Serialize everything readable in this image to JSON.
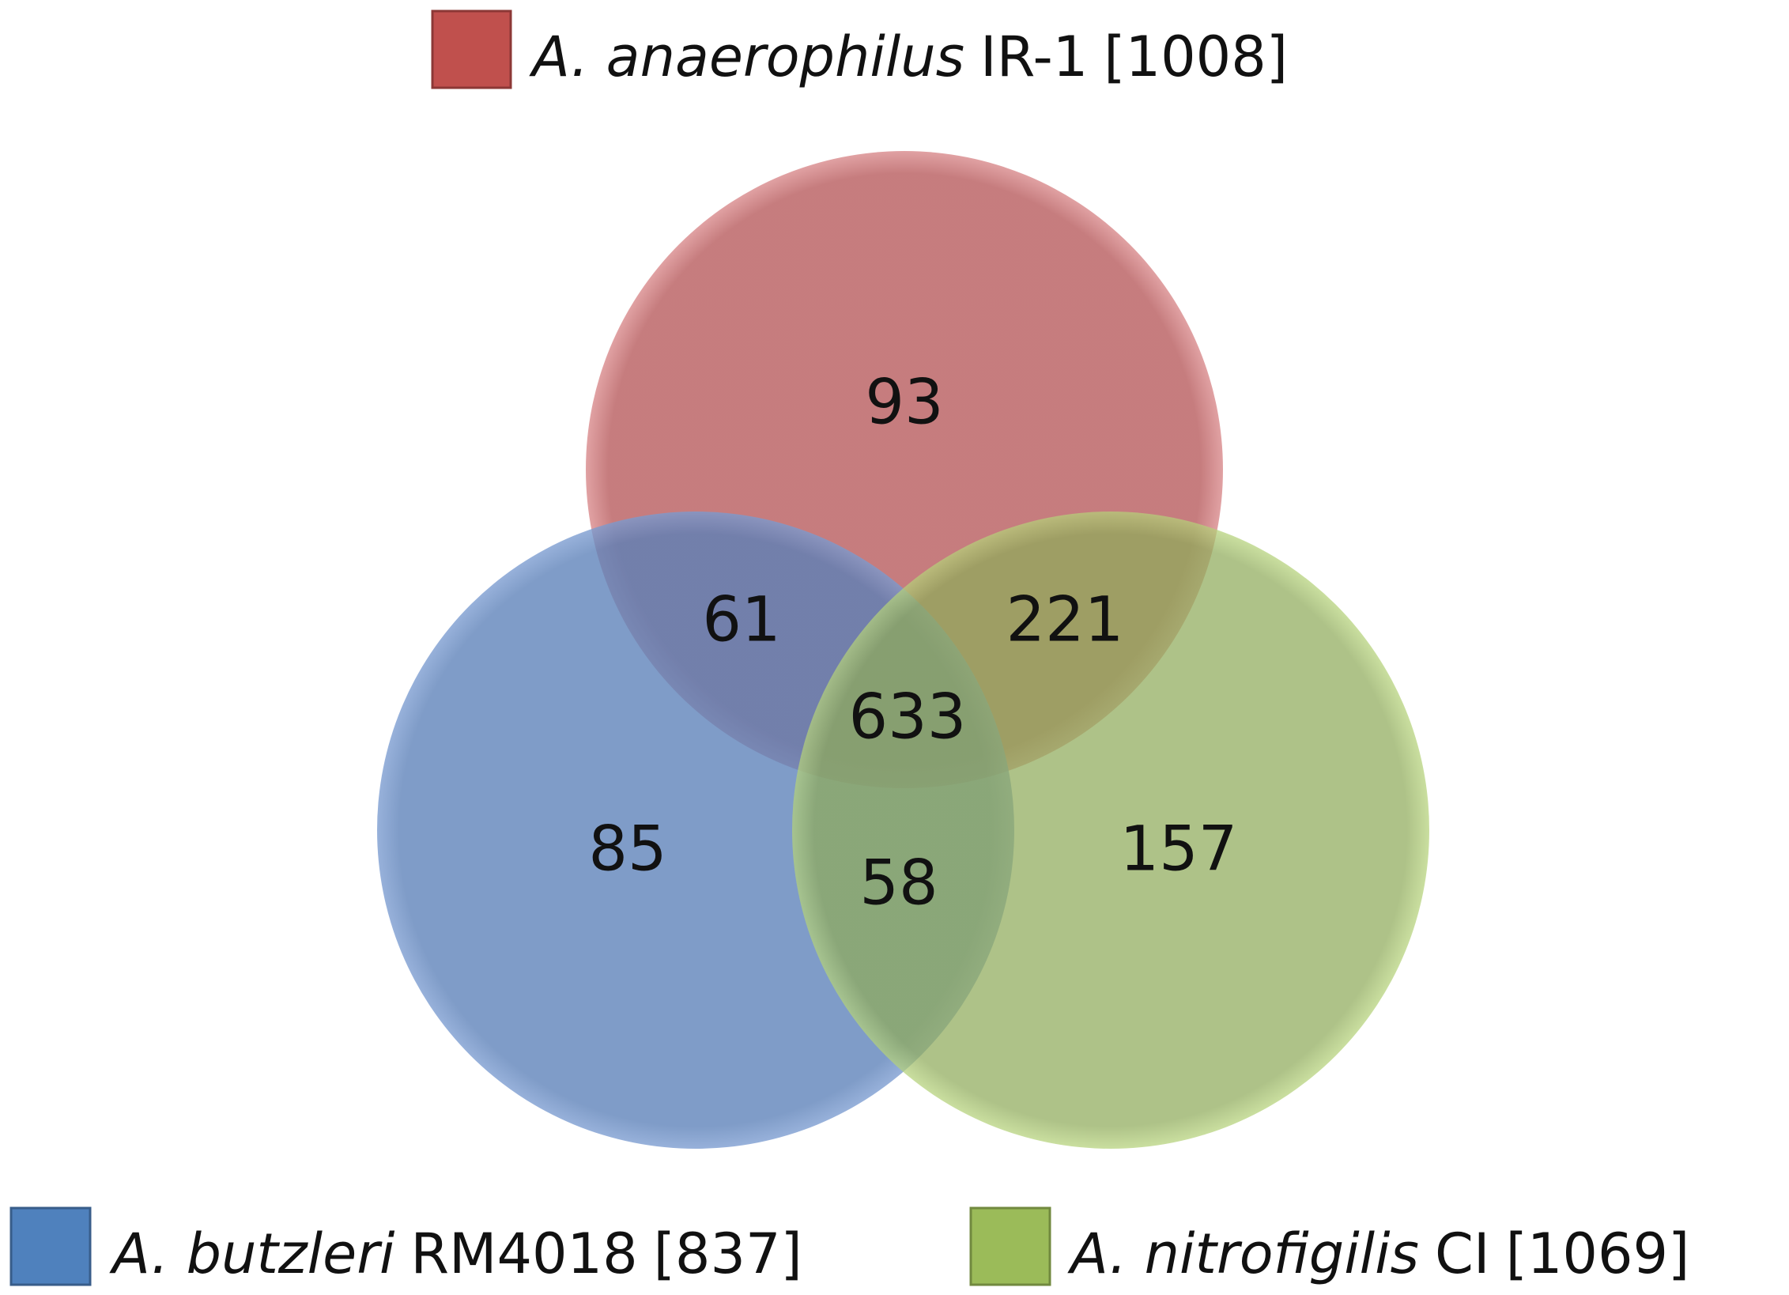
{
  "sets": [
    {
      "species": "A. anaerophilus",
      "strain": "IR-1",
      "count": "[1008]"
    },
    {
      "species": "A. butzleri",
      "strain": "RM4018",
      "count": "[837]"
    },
    {
      "species": "A. nitrofigilis",
      "strain": "CI",
      "count": "[1069]"
    }
  ],
  "regions": {
    "anaerophilus_only": "93",
    "anaerophilus_butzleri": "61",
    "anaerophilus_nitrofigilis": "221",
    "all_three": "633",
    "butzleri_only": "85",
    "butzleri_nitrofigilis": "58",
    "nitrofigilis_only": "157"
  }
}
